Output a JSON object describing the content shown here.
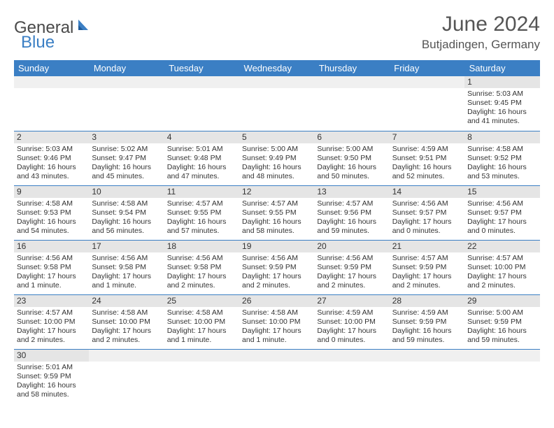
{
  "logo": {
    "text1": "General",
    "text2": "Blue"
  },
  "title": "June 2024",
  "location": "Butjadingen, Germany",
  "colors": {
    "header_bg": "#3b7fc4",
    "header_text": "#ffffff",
    "daynum_bg": "#e5e5e5",
    "border": "#3b7fc4",
    "text": "#333333"
  },
  "daysOfWeek": [
    "Sunday",
    "Monday",
    "Tuesday",
    "Wednesday",
    "Thursday",
    "Friday",
    "Saturday"
  ],
  "weeks": [
    [
      {
        "blank": true
      },
      {
        "blank": true
      },
      {
        "blank": true
      },
      {
        "blank": true
      },
      {
        "blank": true
      },
      {
        "blank": true
      },
      {
        "n": "1",
        "sr": "Sunrise: 5:03 AM",
        "ss": "Sunset: 9:45 PM",
        "dl1": "Daylight: 16 hours",
        "dl2": "and 41 minutes."
      }
    ],
    [
      {
        "n": "2",
        "sr": "Sunrise: 5:03 AM",
        "ss": "Sunset: 9:46 PM",
        "dl1": "Daylight: 16 hours",
        "dl2": "and 43 minutes."
      },
      {
        "n": "3",
        "sr": "Sunrise: 5:02 AM",
        "ss": "Sunset: 9:47 PM",
        "dl1": "Daylight: 16 hours",
        "dl2": "and 45 minutes."
      },
      {
        "n": "4",
        "sr": "Sunrise: 5:01 AM",
        "ss": "Sunset: 9:48 PM",
        "dl1": "Daylight: 16 hours",
        "dl2": "and 47 minutes."
      },
      {
        "n": "5",
        "sr": "Sunrise: 5:00 AM",
        "ss": "Sunset: 9:49 PM",
        "dl1": "Daylight: 16 hours",
        "dl2": "and 48 minutes."
      },
      {
        "n": "6",
        "sr": "Sunrise: 5:00 AM",
        "ss": "Sunset: 9:50 PM",
        "dl1": "Daylight: 16 hours",
        "dl2": "and 50 minutes."
      },
      {
        "n": "7",
        "sr": "Sunrise: 4:59 AM",
        "ss": "Sunset: 9:51 PM",
        "dl1": "Daylight: 16 hours",
        "dl2": "and 52 minutes."
      },
      {
        "n": "8",
        "sr": "Sunrise: 4:58 AM",
        "ss": "Sunset: 9:52 PM",
        "dl1": "Daylight: 16 hours",
        "dl2": "and 53 minutes."
      }
    ],
    [
      {
        "n": "9",
        "sr": "Sunrise: 4:58 AM",
        "ss": "Sunset: 9:53 PM",
        "dl1": "Daylight: 16 hours",
        "dl2": "and 54 minutes."
      },
      {
        "n": "10",
        "sr": "Sunrise: 4:58 AM",
        "ss": "Sunset: 9:54 PM",
        "dl1": "Daylight: 16 hours",
        "dl2": "and 56 minutes."
      },
      {
        "n": "11",
        "sr": "Sunrise: 4:57 AM",
        "ss": "Sunset: 9:55 PM",
        "dl1": "Daylight: 16 hours",
        "dl2": "and 57 minutes."
      },
      {
        "n": "12",
        "sr": "Sunrise: 4:57 AM",
        "ss": "Sunset: 9:55 PM",
        "dl1": "Daylight: 16 hours",
        "dl2": "and 58 minutes."
      },
      {
        "n": "13",
        "sr": "Sunrise: 4:57 AM",
        "ss": "Sunset: 9:56 PM",
        "dl1": "Daylight: 16 hours",
        "dl2": "and 59 minutes."
      },
      {
        "n": "14",
        "sr": "Sunrise: 4:56 AM",
        "ss": "Sunset: 9:57 PM",
        "dl1": "Daylight: 17 hours",
        "dl2": "and 0 minutes."
      },
      {
        "n": "15",
        "sr": "Sunrise: 4:56 AM",
        "ss": "Sunset: 9:57 PM",
        "dl1": "Daylight: 17 hours",
        "dl2": "and 0 minutes."
      }
    ],
    [
      {
        "n": "16",
        "sr": "Sunrise: 4:56 AM",
        "ss": "Sunset: 9:58 PM",
        "dl1": "Daylight: 17 hours",
        "dl2": "and 1 minute."
      },
      {
        "n": "17",
        "sr": "Sunrise: 4:56 AM",
        "ss": "Sunset: 9:58 PM",
        "dl1": "Daylight: 17 hours",
        "dl2": "and 1 minute."
      },
      {
        "n": "18",
        "sr": "Sunrise: 4:56 AM",
        "ss": "Sunset: 9:58 PM",
        "dl1": "Daylight: 17 hours",
        "dl2": "and 2 minutes."
      },
      {
        "n": "19",
        "sr": "Sunrise: 4:56 AM",
        "ss": "Sunset: 9:59 PM",
        "dl1": "Daylight: 17 hours",
        "dl2": "and 2 minutes."
      },
      {
        "n": "20",
        "sr": "Sunrise: 4:56 AM",
        "ss": "Sunset: 9:59 PM",
        "dl1": "Daylight: 17 hours",
        "dl2": "and 2 minutes."
      },
      {
        "n": "21",
        "sr": "Sunrise: 4:57 AM",
        "ss": "Sunset: 9:59 PM",
        "dl1": "Daylight: 17 hours",
        "dl2": "and 2 minutes."
      },
      {
        "n": "22",
        "sr": "Sunrise: 4:57 AM",
        "ss": "Sunset: 10:00 PM",
        "dl1": "Daylight: 17 hours",
        "dl2": "and 2 minutes."
      }
    ],
    [
      {
        "n": "23",
        "sr": "Sunrise: 4:57 AM",
        "ss": "Sunset: 10:00 PM",
        "dl1": "Daylight: 17 hours",
        "dl2": "and 2 minutes."
      },
      {
        "n": "24",
        "sr": "Sunrise: 4:58 AM",
        "ss": "Sunset: 10:00 PM",
        "dl1": "Daylight: 17 hours",
        "dl2": "and 2 minutes."
      },
      {
        "n": "25",
        "sr": "Sunrise: 4:58 AM",
        "ss": "Sunset: 10:00 PM",
        "dl1": "Daylight: 17 hours",
        "dl2": "and 1 minute."
      },
      {
        "n": "26",
        "sr": "Sunrise: 4:58 AM",
        "ss": "Sunset: 10:00 PM",
        "dl1": "Daylight: 17 hours",
        "dl2": "and 1 minute."
      },
      {
        "n": "27",
        "sr": "Sunrise: 4:59 AM",
        "ss": "Sunset: 10:00 PM",
        "dl1": "Daylight: 17 hours",
        "dl2": "and 0 minutes."
      },
      {
        "n": "28",
        "sr": "Sunrise: 4:59 AM",
        "ss": "Sunset: 9:59 PM",
        "dl1": "Daylight: 16 hours",
        "dl2": "and 59 minutes."
      },
      {
        "n": "29",
        "sr": "Sunrise: 5:00 AM",
        "ss": "Sunset: 9:59 PM",
        "dl1": "Daylight: 16 hours",
        "dl2": "and 59 minutes."
      }
    ],
    [
      {
        "n": "30",
        "sr": "Sunrise: 5:01 AM",
        "ss": "Sunset: 9:59 PM",
        "dl1": "Daylight: 16 hours",
        "dl2": "and 58 minutes."
      },
      {
        "blank": true
      },
      {
        "blank": true
      },
      {
        "blank": true
      },
      {
        "blank": true
      },
      {
        "blank": true
      },
      {
        "blank": true
      }
    ]
  ]
}
